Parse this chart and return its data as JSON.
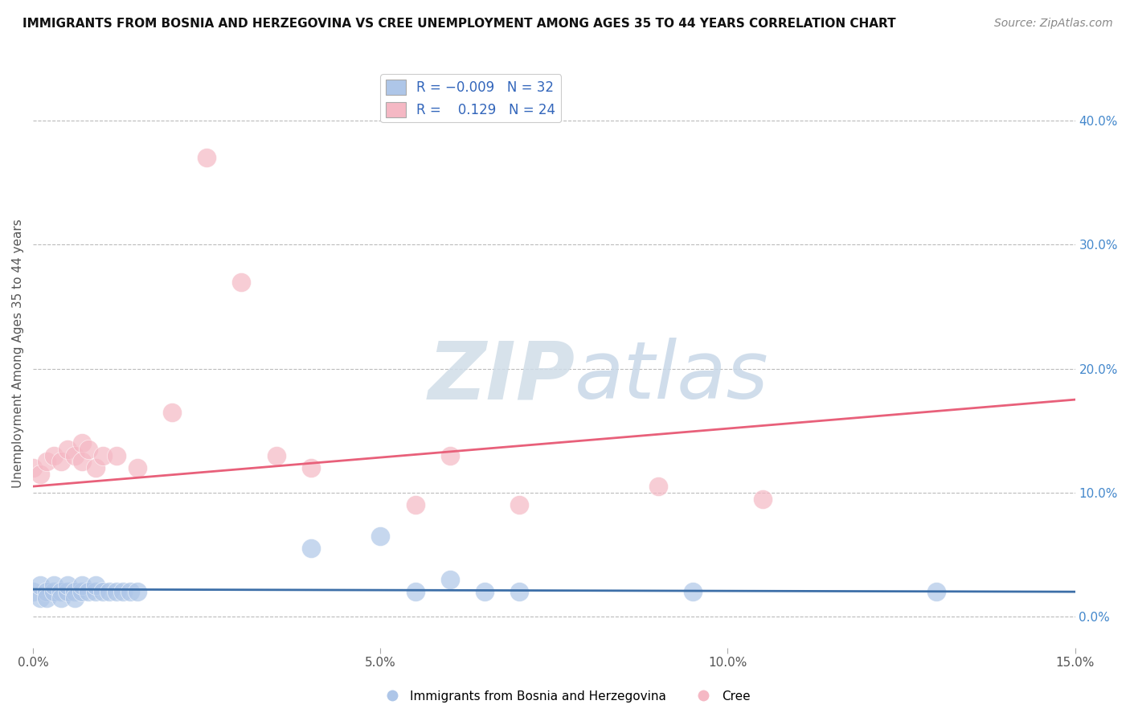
{
  "title": "IMMIGRANTS FROM BOSNIA AND HERZEGOVINA VS CREE UNEMPLOYMENT AMONG AGES 35 TO 44 YEARS CORRELATION CHART",
  "source": "Source: ZipAtlas.com",
  "ylabel": "Unemployment Among Ages 35 to 44 years",
  "xlim": [
    0.0,
    0.15
  ],
  "ylim": [
    -0.025,
    0.45
  ],
  "x_ticks": [
    0.0,
    0.05,
    0.1,
    0.15
  ],
  "x_tick_labels": [
    "0.0%",
    "5.0%",
    "10.0%",
    "15.0%"
  ],
  "y_ticks_right": [
    0.0,
    0.1,
    0.2,
    0.3,
    0.4
  ],
  "y_tick_labels_right": [
    "0.0%",
    "10.0%",
    "20.0%",
    "30.0%",
    "40.0%"
  ],
  "blue_color": "#aec6e8",
  "pink_color": "#f5b8c4",
  "blue_line_color": "#3d6fa8",
  "pink_line_color": "#e8607a",
  "grid_color": "#bbbbbb",
  "blue_scatter_x": [
    0.0,
    0.001,
    0.001,
    0.002,
    0.002,
    0.003,
    0.003,
    0.004,
    0.004,
    0.005,
    0.005,
    0.006,
    0.006,
    0.007,
    0.007,
    0.008,
    0.009,
    0.009,
    0.01,
    0.011,
    0.012,
    0.013,
    0.014,
    0.015,
    0.04,
    0.05,
    0.055,
    0.06,
    0.065,
    0.07,
    0.095,
    0.13
  ],
  "blue_scatter_y": [
    0.02,
    0.015,
    0.025,
    0.02,
    0.015,
    0.02,
    0.025,
    0.02,
    0.015,
    0.02,
    0.025,
    0.02,
    0.015,
    0.02,
    0.025,
    0.02,
    0.02,
    0.025,
    0.02,
    0.02,
    0.02,
    0.02,
    0.02,
    0.02,
    0.055,
    0.065,
    0.02,
    0.03,
    0.02,
    0.02,
    0.02,
    0.02
  ],
  "pink_scatter_x": [
    0.0,
    0.001,
    0.002,
    0.003,
    0.004,
    0.005,
    0.006,
    0.007,
    0.007,
    0.008,
    0.009,
    0.01,
    0.012,
    0.015,
    0.02,
    0.025,
    0.03,
    0.035,
    0.04,
    0.055,
    0.06,
    0.07,
    0.09,
    0.105
  ],
  "pink_scatter_y": [
    0.12,
    0.115,
    0.125,
    0.13,
    0.125,
    0.135,
    0.13,
    0.14,
    0.125,
    0.135,
    0.12,
    0.13,
    0.13,
    0.12,
    0.165,
    0.37,
    0.27,
    0.13,
    0.12,
    0.09,
    0.13,
    0.09,
    0.105,
    0.095
  ],
  "blue_trend_x": [
    0.0,
    0.15
  ],
  "blue_trend_y": [
    0.022,
    0.02
  ],
  "pink_trend_x": [
    0.0,
    0.15
  ],
  "pink_trend_y": [
    0.105,
    0.175
  ]
}
